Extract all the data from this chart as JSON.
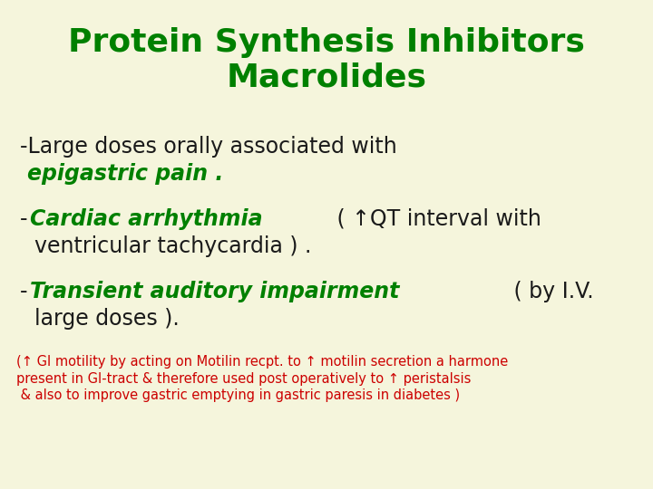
{
  "bg_color": "#f5f5dc",
  "title_line1": "Protein Synthesis Inhibitors",
  "title_line2": "Macrolides",
  "title_color": "#008000",
  "title_fontsize": 26,
  "body_fontsize": 17,
  "body_color_black": "#1a1a1a",
  "body_color_green": "#008000",
  "body_color_red": "#cc0000",
  "footnote": "(↑ GI motility by acting on Motilin recpt. to ↑ motilin secretion a harmone\npresent in GI-tract & therefore used post operatively to ↑ peristalsis\n & also to improve gastric emptying in gastric paresis in diabetes )",
  "footnote_color": "#cc0000",
  "footnote_fontsize": 10.5
}
